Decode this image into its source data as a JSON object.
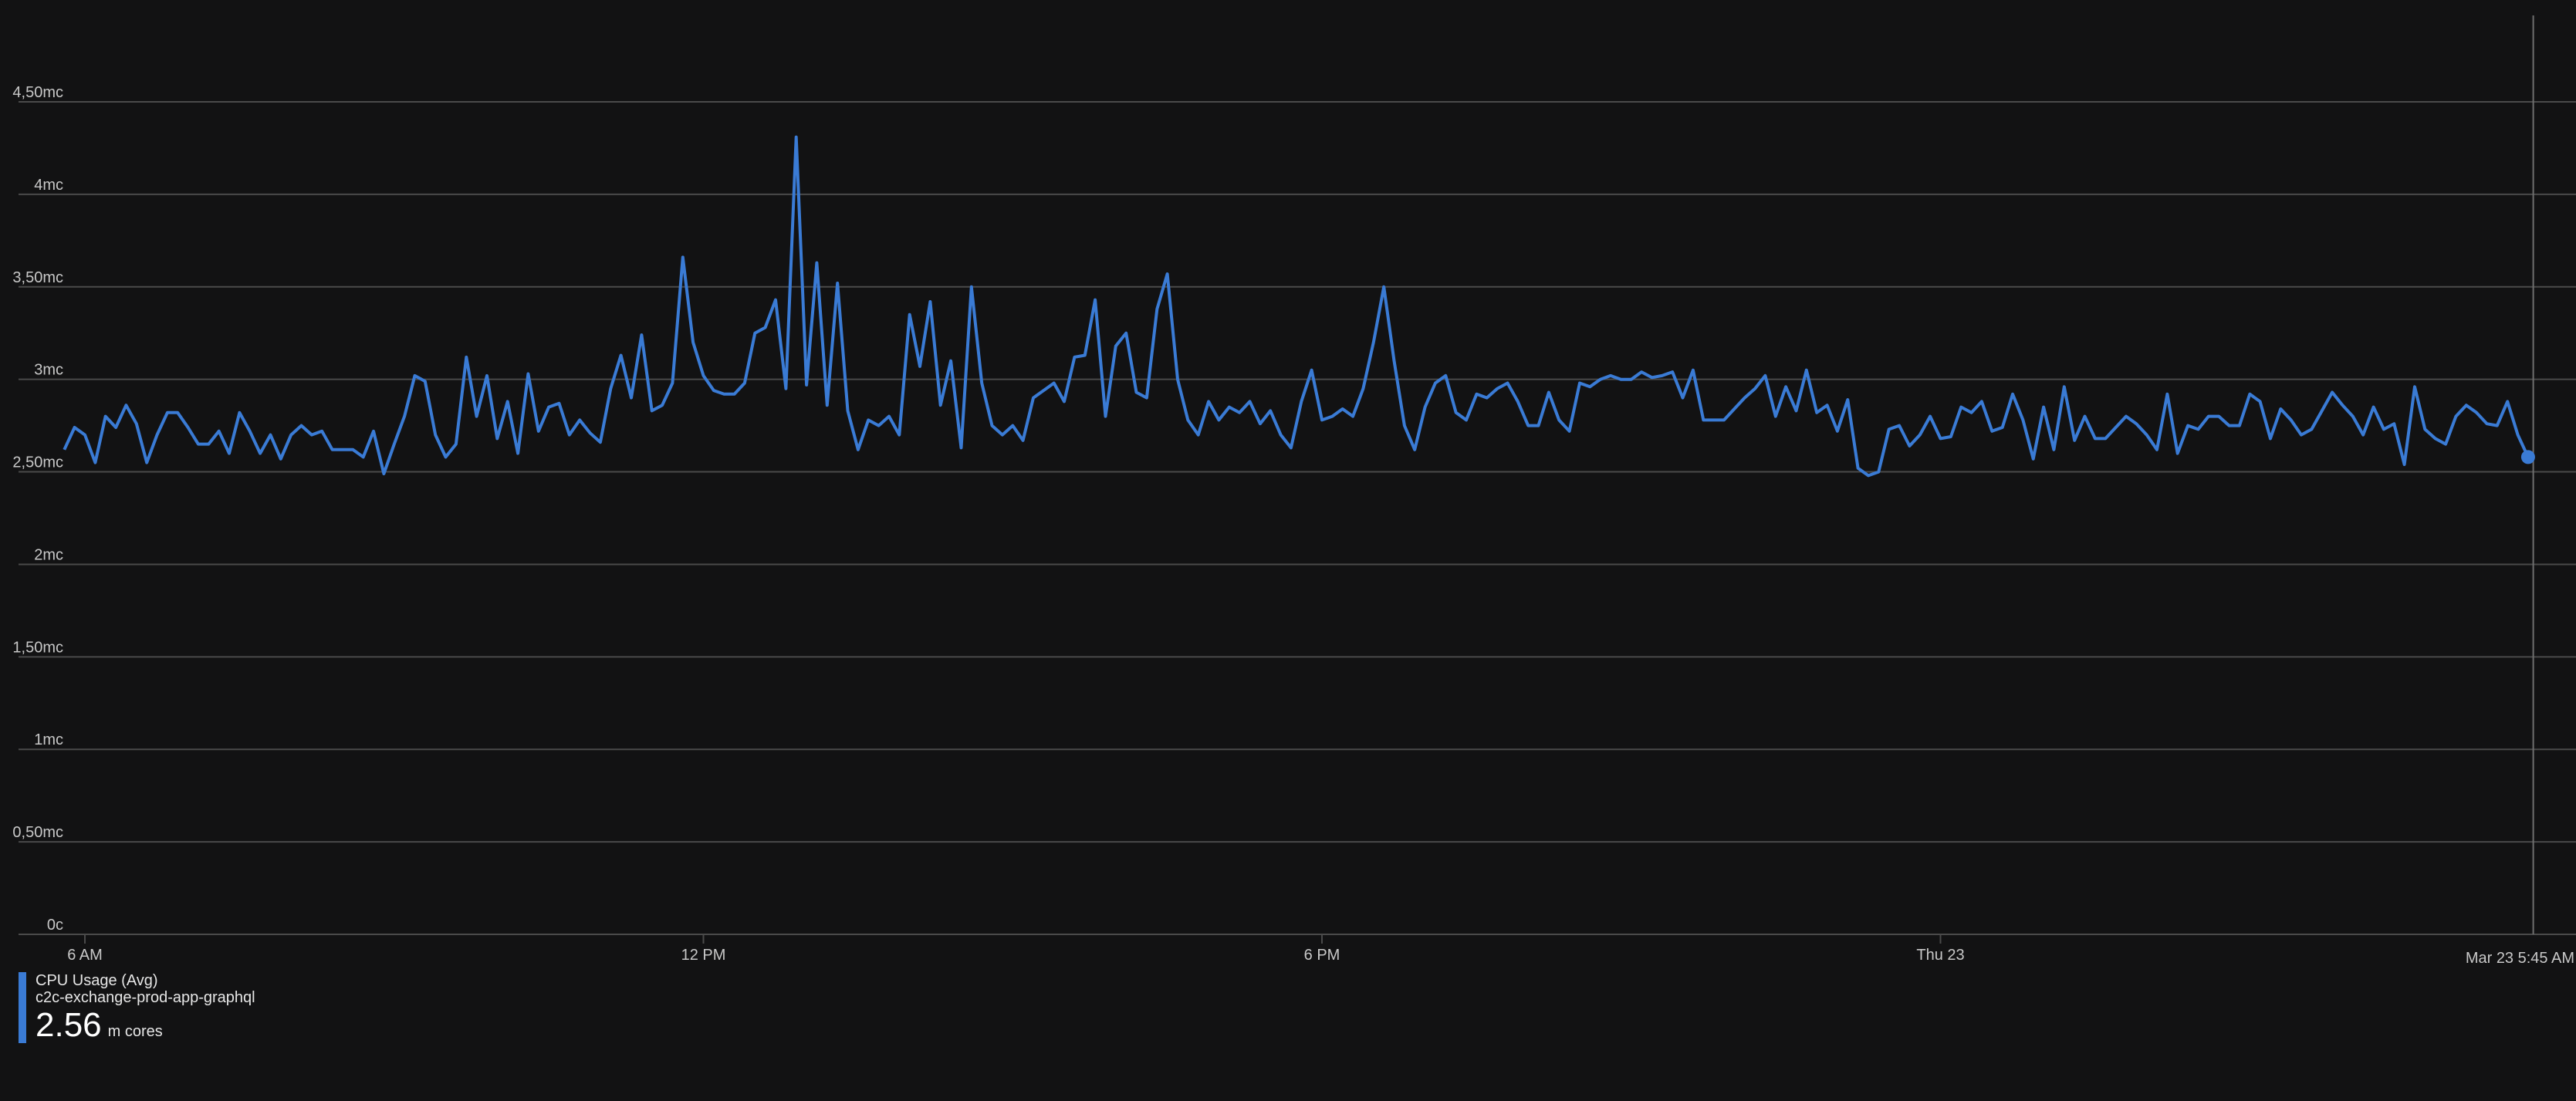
{
  "colors": {
    "background": "#121213",
    "gridline": "#4a4a4a",
    "axis_text": "#c8c8c8",
    "series": "#3a7bd5",
    "cursor_line": "#6e6e6e"
  },
  "legend": {
    "metric": "CPU Usage (Avg)",
    "resource": "c2c-exchange-prod-app-graphql",
    "value": "2.56",
    "unit": "m cores"
  },
  "chart_data": {
    "type": "line",
    "title": "",
    "xlabel": "",
    "ylabel": "",
    "ylim": [
      0,
      4.5
    ],
    "y_ticks": [
      {
        "value": 0,
        "label": "0c"
      },
      {
        "value": 0.5,
        "label": "0,50mc"
      },
      {
        "value": 1,
        "label": "1mc"
      },
      {
        "value": 1.5,
        "label": "1,50mc"
      },
      {
        "value": 2,
        "label": "2mc"
      },
      {
        "value": 2.5,
        "label": "2,50mc"
      },
      {
        "value": 3,
        "label": "3mc"
      },
      {
        "value": 3.5,
        "label": "3,50mc"
      },
      {
        "value": 4,
        "label": "4mc"
      },
      {
        "value": 4.5,
        "label": "4,50mc"
      }
    ],
    "x_unit": "hours since 6 AM",
    "xlim": [
      -0.2,
      23.9
    ],
    "x_ticks": [
      {
        "value": 0,
        "label": "6 AM"
      },
      {
        "value": 6,
        "label": "12 PM"
      },
      {
        "value": 12,
        "label": "6 PM"
      },
      {
        "value": 18,
        "label": "Thu 23"
      }
    ],
    "cursor": {
      "x": 23.75,
      "label": "Mar 23 5:45 AM"
    },
    "grid": true,
    "legend_position": "bottom-left",
    "series": [
      {
        "name": "c2c-exchange-prod-app-graphql",
        "points": [
          [
            -0.2,
            2.62
          ],
          [
            -0.1,
            2.74
          ],
          [
            0,
            2.7
          ],
          [
            0.1,
            2.55
          ],
          [
            0.2,
            2.8
          ],
          [
            0.3,
            2.74
          ],
          [
            0.4,
            2.86
          ],
          [
            0.5,
            2.76
          ],
          [
            0.6,
            2.55
          ],
          [
            0.7,
            2.7
          ],
          [
            0.8,
            2.82
          ],
          [
            0.9,
            2.82
          ],
          [
            1.0,
            2.74
          ],
          [
            1.1,
            2.65
          ],
          [
            1.2,
            2.65
          ],
          [
            1.3,
            2.72
          ],
          [
            1.4,
            2.6
          ],
          [
            1.5,
            2.82
          ],
          [
            1.6,
            2.72
          ],
          [
            1.7,
            2.6
          ],
          [
            1.8,
            2.7
          ],
          [
            1.9,
            2.57
          ],
          [
            2.0,
            2.7
          ],
          [
            2.1,
            2.75
          ],
          [
            2.2,
            2.7
          ],
          [
            2.3,
            2.72
          ],
          [
            2.4,
            2.62
          ],
          [
            2.5,
            2.62
          ],
          [
            2.6,
            2.62
          ],
          [
            2.7,
            2.58
          ],
          [
            2.8,
            2.72
          ],
          [
            2.9,
            2.49
          ],
          [
            3.0,
            2.65
          ],
          [
            3.1,
            2.8
          ],
          [
            3.2,
            3.02
          ],
          [
            3.3,
            2.99
          ],
          [
            3.4,
            2.7
          ],
          [
            3.5,
            2.58
          ],
          [
            3.6,
            2.65
          ],
          [
            3.7,
            3.12
          ],
          [
            3.8,
            2.8
          ],
          [
            3.9,
            3.02
          ],
          [
            4.0,
            2.68
          ],
          [
            4.1,
            2.88
          ],
          [
            4.2,
            2.6
          ],
          [
            4.3,
            3.03
          ],
          [
            4.4,
            2.72
          ],
          [
            4.5,
            2.85
          ],
          [
            4.6,
            2.87
          ],
          [
            4.7,
            2.7
          ],
          [
            4.8,
            2.78
          ],
          [
            4.9,
            2.71
          ],
          [
            5.0,
            2.66
          ],
          [
            5.1,
            2.95
          ],
          [
            5.2,
            3.13
          ],
          [
            5.3,
            2.9
          ],
          [
            5.4,
            3.24
          ],
          [
            5.5,
            2.83
          ],
          [
            5.6,
            2.86
          ],
          [
            5.7,
            2.98
          ],
          [
            5.8,
            3.66
          ],
          [
            5.9,
            3.2
          ],
          [
            6.0,
            3.02
          ],
          [
            6.1,
            2.94
          ],
          [
            6.2,
            2.92
          ],
          [
            6.3,
            2.92
          ],
          [
            6.4,
            2.98
          ],
          [
            6.5,
            3.25
          ],
          [
            6.6,
            3.28
          ],
          [
            6.7,
            3.43
          ],
          [
            6.8,
            2.95
          ],
          [
            6.9,
            4.31
          ],
          [
            7.0,
            2.97
          ],
          [
            7.1,
            3.63
          ],
          [
            7.2,
            2.86
          ],
          [
            7.3,
            3.52
          ],
          [
            7.4,
            2.83
          ],
          [
            7.5,
            2.62
          ],
          [
            7.6,
            2.78
          ],
          [
            7.7,
            2.75
          ],
          [
            7.8,
            2.8
          ],
          [
            7.9,
            2.7
          ],
          [
            8.0,
            3.35
          ],
          [
            8.1,
            3.07
          ],
          [
            8.2,
            3.42
          ],
          [
            8.3,
            2.86
          ],
          [
            8.4,
            3.1
          ],
          [
            8.5,
            2.63
          ],
          [
            8.6,
            3.5
          ],
          [
            8.7,
            2.98
          ],
          [
            8.8,
            2.75
          ],
          [
            8.9,
            2.7
          ],
          [
            9.0,
            2.75
          ],
          [
            9.1,
            2.67
          ],
          [
            9.2,
            2.9
          ],
          [
            9.3,
            2.94
          ],
          [
            9.4,
            2.98
          ],
          [
            9.5,
            2.88
          ],
          [
            9.6,
            3.12
          ],
          [
            9.7,
            3.13
          ],
          [
            9.8,
            3.43
          ],
          [
            9.9,
            2.8
          ],
          [
            10.0,
            3.18
          ],
          [
            10.1,
            3.25
          ],
          [
            10.2,
            2.93
          ],
          [
            10.3,
            2.9
          ],
          [
            10.4,
            3.38
          ],
          [
            10.5,
            3.57
          ],
          [
            10.6,
            3.0
          ],
          [
            10.7,
            2.78
          ],
          [
            10.8,
            2.7
          ],
          [
            10.9,
            2.88
          ],
          [
            11.0,
            2.78
          ],
          [
            11.1,
            2.85
          ],
          [
            11.2,
            2.82
          ],
          [
            11.3,
            2.88
          ],
          [
            11.4,
            2.76
          ],
          [
            11.5,
            2.83
          ],
          [
            11.6,
            2.7
          ],
          [
            11.7,
            2.63
          ],
          [
            11.8,
            2.88
          ],
          [
            11.9,
            3.05
          ],
          [
            12.0,
            2.78
          ],
          [
            12.1,
            2.8
          ],
          [
            12.2,
            2.84
          ],
          [
            12.3,
            2.8
          ],
          [
            12.4,
            2.95
          ],
          [
            12.5,
            3.2
          ],
          [
            12.6,
            3.5
          ],
          [
            12.7,
            3.1
          ],
          [
            12.8,
            2.75
          ],
          [
            12.9,
            2.62
          ],
          [
            13.0,
            2.85
          ],
          [
            13.1,
            2.98
          ],
          [
            13.2,
            3.02
          ],
          [
            13.3,
            2.82
          ],
          [
            13.4,
            2.78
          ],
          [
            13.5,
            2.92
          ],
          [
            13.6,
            2.9
          ],
          [
            13.7,
            2.95
          ],
          [
            13.8,
            2.98
          ],
          [
            13.9,
            2.88
          ],
          [
            14.0,
            2.75
          ],
          [
            14.1,
            2.75
          ],
          [
            14.2,
            2.93
          ],
          [
            14.3,
            2.78
          ],
          [
            14.4,
            2.72
          ],
          [
            14.5,
            2.98
          ],
          [
            14.6,
            2.96
          ],
          [
            14.7,
            3.0
          ],
          [
            14.8,
            3.02
          ],
          [
            14.9,
            3.0
          ],
          [
            15.0,
            3.0
          ],
          [
            15.1,
            3.04
          ],
          [
            15.2,
            3.01
          ],
          [
            15.3,
            3.02
          ],
          [
            15.4,
            3.04
          ],
          [
            15.5,
            2.9
          ],
          [
            15.6,
            3.05
          ],
          [
            15.7,
            2.78
          ],
          [
            15.8,
            2.78
          ],
          [
            15.9,
            2.78
          ],
          [
            16.0,
            2.84
          ],
          [
            16.1,
            2.9
          ],
          [
            16.2,
            2.95
          ],
          [
            16.3,
            3.02
          ],
          [
            16.4,
            2.8
          ],
          [
            16.5,
            2.96
          ],
          [
            16.6,
            2.83
          ],
          [
            16.7,
            3.05
          ],
          [
            16.8,
            2.82
          ],
          [
            16.9,
            2.86
          ],
          [
            17.0,
            2.72
          ],
          [
            17.1,
            2.89
          ],
          [
            17.2,
            2.52
          ],
          [
            17.3,
            2.48
          ],
          [
            17.4,
            2.5
          ],
          [
            17.5,
            2.73
          ],
          [
            17.6,
            2.75
          ],
          [
            17.7,
            2.64
          ],
          [
            17.8,
            2.7
          ],
          [
            17.9,
            2.8
          ],
          [
            18.0,
            2.68
          ],
          [
            18.1,
            2.69
          ],
          [
            18.2,
            2.85
          ],
          [
            18.3,
            2.82
          ],
          [
            18.4,
            2.88
          ],
          [
            18.5,
            2.72
          ],
          [
            18.6,
            2.74
          ],
          [
            18.7,
            2.92
          ],
          [
            18.8,
            2.78
          ],
          [
            18.9,
            2.57
          ],
          [
            19.0,
            2.85
          ],
          [
            19.1,
            2.62
          ],
          [
            19.2,
            2.96
          ],
          [
            19.3,
            2.67
          ],
          [
            19.4,
            2.8
          ],
          [
            19.5,
            2.68
          ],
          [
            19.6,
            2.68
          ],
          [
            19.7,
            2.74
          ],
          [
            19.8,
            2.8
          ],
          [
            19.9,
            2.76
          ],
          [
            20.0,
            2.7
          ],
          [
            20.1,
            2.62
          ],
          [
            20.2,
            2.92
          ],
          [
            20.3,
            2.6
          ],
          [
            20.4,
            2.75
          ],
          [
            20.5,
            2.73
          ],
          [
            20.6,
            2.8
          ],
          [
            20.7,
            2.8
          ],
          [
            20.8,
            2.75
          ],
          [
            20.9,
            2.75
          ],
          [
            21.0,
            2.92
          ],
          [
            21.1,
            2.88
          ],
          [
            21.2,
            2.68
          ],
          [
            21.3,
            2.84
          ],
          [
            21.4,
            2.78
          ],
          [
            21.5,
            2.7
          ],
          [
            21.6,
            2.73
          ],
          [
            21.7,
            2.83
          ],
          [
            21.8,
            2.93
          ],
          [
            21.9,
            2.86
          ],
          [
            22.0,
            2.8
          ],
          [
            22.1,
            2.7
          ],
          [
            22.2,
            2.85
          ],
          [
            22.3,
            2.73
          ],
          [
            22.4,
            2.76
          ],
          [
            22.5,
            2.54
          ],
          [
            22.6,
            2.96
          ],
          [
            22.7,
            2.73
          ],
          [
            22.8,
            2.68
          ],
          [
            22.9,
            2.65
          ],
          [
            23.0,
            2.8
          ],
          [
            23.1,
            2.86
          ],
          [
            23.2,
            2.82
          ],
          [
            23.3,
            2.76
          ],
          [
            23.4,
            2.75
          ],
          [
            23.5,
            2.88
          ],
          [
            23.6,
            2.7
          ],
          [
            23.7,
            2.58
          ]
        ]
      }
    ]
  }
}
